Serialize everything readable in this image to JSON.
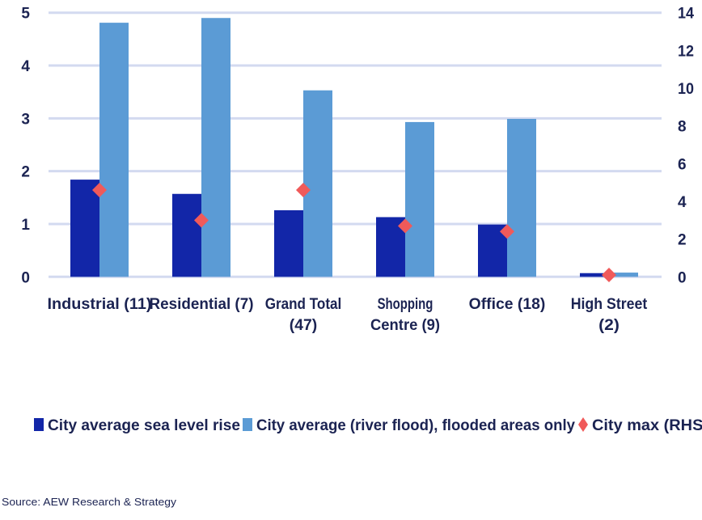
{
  "chart_data": {
    "type": "bar",
    "categories": [
      [
        "Industrial (11)"
      ],
      [
        "Residential (7)"
      ],
      [
        "Grand Total",
        "(47)"
      ],
      [
        "Shopping",
        "Centre (9)"
      ],
      [
        "Office (18)"
      ],
      [
        "High Street",
        "(2)"
      ]
    ],
    "series": [
      {
        "name": "City average sea level rise",
        "axis": "left",
        "kind": "bar",
        "color": "#1226a8",
        "values": [
          1.84,
          1.57,
          1.26,
          1.13,
          0.99,
          0.07
        ]
      },
      {
        "name": "City average (river flood), flooded areas only",
        "axis": "left",
        "kind": "bar",
        "color": "#5b9bd5",
        "values": [
          4.81,
          4.9,
          3.53,
          2.93,
          2.99,
          0.08
        ]
      },
      {
        "name": "City max (RHS)",
        "axis": "right",
        "kind": "marker-diamond",
        "color": "#f05a5a",
        "values": [
          4.6,
          3.0,
          4.6,
          2.7,
          2.4,
          0.1
        ]
      }
    ],
    "ylim_left": [
      0,
      5
    ],
    "yticks_left": [
      "0",
      "1",
      "2",
      "3",
      "4",
      "5"
    ],
    "ylim_right": [
      0,
      14
    ],
    "yticks_right": [
      "0",
      "2",
      "4",
      "6",
      "8",
      "10",
      "12",
      "14"
    ],
    "grid": true,
    "gridline_color": "#d3daf0",
    "legend_position": "bottom",
    "title": "",
    "xlabel": "",
    "ylabel": ""
  },
  "source": "Source: AEW Research & Strategy"
}
